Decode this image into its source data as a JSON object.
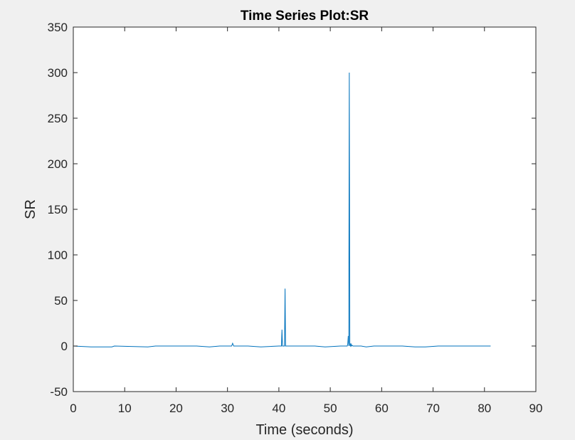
{
  "chart_data": {
    "type": "line",
    "title": "Time Series Plot:SR",
    "xlabel": "Time (seconds)",
    "ylabel": "SR",
    "xlim": [
      0,
      90
    ],
    "ylim": [
      -50,
      350
    ],
    "xticks": [
      0,
      10,
      20,
      30,
      40,
      50,
      60,
      70,
      80,
      90
    ],
    "yticks": [
      -50,
      0,
      50,
      100,
      150,
      200,
      250,
      300,
      350
    ],
    "xtick_labels": [
      "0",
      "10",
      "20",
      "30",
      "40",
      "50",
      "60",
      "70",
      "80",
      "90"
    ],
    "ytick_labels": [
      "-50",
      "0",
      "50",
      "100",
      "150",
      "200",
      "250",
      "300",
      "350"
    ],
    "grid": false,
    "series": [
      {
        "color": "#0072bd",
        "x": [
          0,
          3.5,
          7.5,
          8,
          14.5,
          16,
          24,
          26.5,
          28.5,
          30.8,
          31,
          31.2,
          31.5,
          34,
          36.5,
          40,
          40.5,
          40.6,
          40.7,
          40.8,
          41.1,
          41.2,
          41.3,
          41.5,
          44,
          47,
          49,
          52,
          53.3,
          53.4,
          53.5,
          53.6,
          53.7,
          53.8,
          53.9,
          54.0,
          54.1,
          54.2,
          54.4,
          54.6,
          56,
          57,
          58.5,
          60.5,
          64,
          66.5,
          68.5,
          71,
          75,
          78,
          81.2
        ],
        "y": [
          0,
          -1,
          -1,
          0,
          -1,
          0,
          0,
          -1,
          0,
          0,
          3,
          0,
          0,
          0,
          -1,
          0,
          0,
          18,
          0,
          0,
          0,
          63,
          0,
          0,
          0,
          0,
          -1,
          0,
          0,
          2,
          11,
          0,
          300,
          1,
          0,
          3,
          0,
          1,
          0,
          0,
          0,
          -1,
          0,
          0,
          0,
          -1,
          -1,
          0,
          0,
          0,
          0
        ]
      }
    ]
  }
}
